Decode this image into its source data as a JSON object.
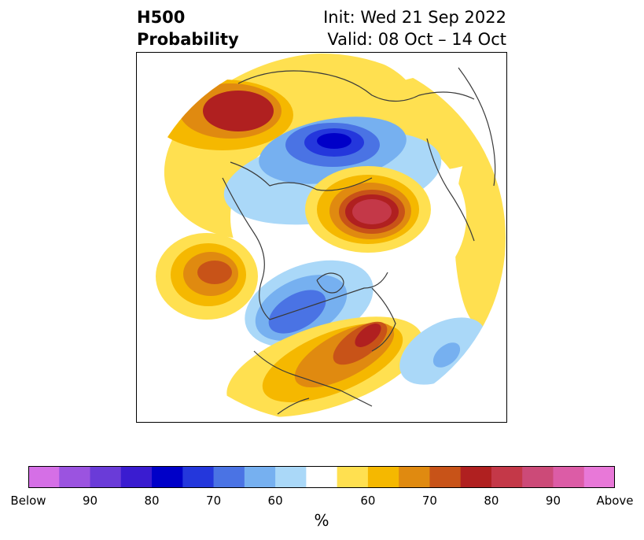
{
  "title": {
    "line1_left": "H500",
    "line2_left": "Probability",
    "line1_right": "Init: Wed 21 Sep 2022",
    "line2_right": "Valid: 08 Oct – 14 Oct"
  },
  "map": {
    "projection": "north polar stereographic",
    "background": "#ffffff",
    "coastline_color": "#3a3a3a"
  },
  "colorbar": {
    "unit_label": "%",
    "colors": [
      "#d56fe6",
      "#9b53e0",
      "#6a3bd8",
      "#3a1cd0",
      "#0000c8",
      "#2437dc",
      "#4a73e4",
      "#76b0f0",
      "#aad8f8",
      "#ffffff",
      "#ffe050",
      "#f5b800",
      "#e08a10",
      "#c85318",
      "#b02020",
      "#c43848",
      "#cc4a78",
      "#dc5ca6",
      "#e878d8"
    ],
    "tick_labels": [
      {
        "text": "Below",
        "index": 0
      },
      {
        "text": "90",
        "index": 2
      },
      {
        "text": "80",
        "index": 4
      },
      {
        "text": "70",
        "index": 6
      },
      {
        "text": "60",
        "index": 8
      },
      {
        "text": "60",
        "index": 11
      },
      {
        "text": "70",
        "index": 13
      },
      {
        "text": "80",
        "index": 15
      },
      {
        "text": "90",
        "index": 17
      },
      {
        "text": "Above",
        "index": 19
      }
    ]
  }
}
